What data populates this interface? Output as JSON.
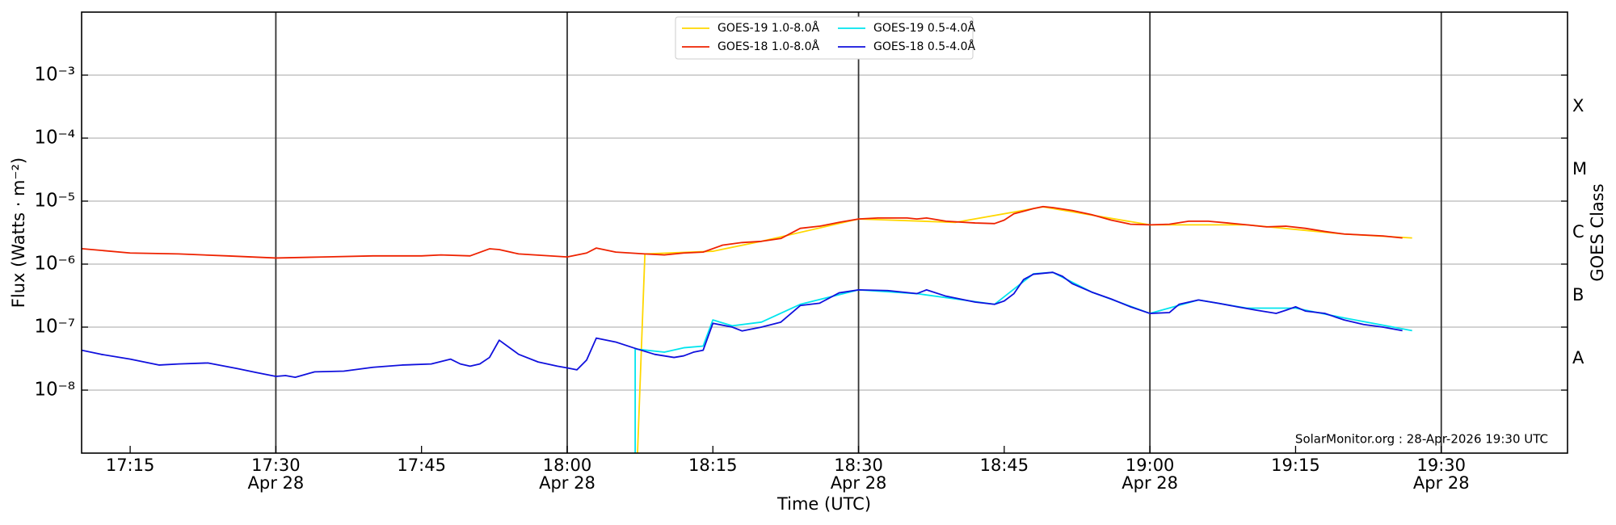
{
  "chart_data": {
    "type": "line",
    "ylabel": "Flux (Watts · m⁻²)",
    "xlabel": "Time (UTC)",
    "y2label": "GOES Class",
    "annotation": "SolarMonitor.org : 28-Apr-2026 19:30 UTC",
    "log_scale": true,
    "grid": true,
    "legend": "top",
    "xlim": [
      "17:10",
      "19:43"
    ],
    "xticks": [
      "17:15",
      "17:30",
      "17:45",
      "18:00",
      "18:15",
      "18:30",
      "18:45",
      "19:00",
      "19:15",
      "19:30"
    ],
    "xtick_sublabels": [
      null,
      "Apr 28",
      null,
      "Apr 28",
      null,
      "Apr 28",
      null,
      "Apr 28",
      null,
      "Apr 28"
    ],
    "ylim": [
      1e-09,
      0.01
    ],
    "yticks": [
      {
        "value": 1e-08,
        "label": "10⁻⁸"
      },
      {
        "value": 1e-07,
        "label": "10⁻⁷"
      },
      {
        "value": 1e-06,
        "label": "10⁻⁶"
      },
      {
        "value": 1e-05,
        "label": "10⁻⁵"
      },
      {
        "value": 0.0001,
        "label": "10⁻⁴"
      },
      {
        "value": 0.001,
        "label": "10⁻³"
      }
    ],
    "class_labels": [
      "A",
      "B",
      "C",
      "M",
      "X"
    ],
    "class_thresholds": [
      1e-08,
      1e-07,
      1e-06,
      1e-05,
      0.0001
    ],
    "series": [
      {
        "name": "GOES-19 1.0-8.0Å",
        "color": "#ffd700",
        "x": [
          "18:07",
          "18:08",
          "18:15",
          "18:20",
          "18:30",
          "18:40",
          "18:49",
          "19:00",
          "19:10",
          "19:20",
          "19:27"
        ],
        "values": [
          1e-10,
          1.45e-06,
          1.6e-06,
          2.3e-06,
          5.2e-06,
          4.6e-06,
          8.1e-06,
          4.2e-06,
          4.2e-06,
          3e-06,
          2.6e-06
        ]
      },
      {
        "name": "GOES-18 1.0-8.0Å",
        "color": "#ee2200",
        "x": [
          "17:10",
          "17:15",
          "17:20",
          "17:25",
          "17:30",
          "17:35",
          "17:40",
          "17:45",
          "17:47",
          "17:50",
          "17:52",
          "17:53",
          "17:55",
          "18:00",
          "18:02",
          "18:03",
          "18:05",
          "18:08",
          "18:10",
          "18:12",
          "18:14",
          "18:16",
          "18:18",
          "18:20",
          "18:22",
          "18:24",
          "18:26",
          "18:28",
          "18:30",
          "18:32",
          "18:35",
          "18:36",
          "18:37",
          "18:39",
          "18:42",
          "18:44",
          "18:45",
          "18:46",
          "18:48",
          "18:49",
          "18:50",
          "18:52",
          "18:54",
          "18:56",
          "18:58",
          "19:00",
          "19:02",
          "19:04",
          "19:06",
          "19:08",
          "19:10",
          "19:12",
          "19:14",
          "19:16",
          "19:18",
          "19:20",
          "19:24",
          "19:26"
        ],
        "values": [
          1.76e-06,
          1.5e-06,
          1.45e-06,
          1.35e-06,
          1.25e-06,
          1.3e-06,
          1.35e-06,
          1.35e-06,
          1.4e-06,
          1.35e-06,
          1.75e-06,
          1.7e-06,
          1.45e-06,
          1.3e-06,
          1.5e-06,
          1.8e-06,
          1.55e-06,
          1.45e-06,
          1.4e-06,
          1.5e-06,
          1.55e-06,
          2e-06,
          2.2e-06,
          2.3e-06,
          2.55e-06,
          3.7e-06,
          4e-06,
          4.6e-06,
          5.2e-06,
          5.4e-06,
          5.4e-06,
          5.2e-06,
          5.4e-06,
          4.8e-06,
          4.5e-06,
          4.4e-06,
          5e-06,
          6.3e-06,
          7.6e-06,
          8.2e-06,
          7.9e-06,
          7.1e-06,
          6.1e-06,
          5e-06,
          4.3e-06,
          4.2e-06,
          4.3e-06,
          4.8e-06,
          4.8e-06,
          4.5e-06,
          4.2e-06,
          3.9e-06,
          4e-06,
          3.7e-06,
          3.3e-06,
          3e-06,
          2.8e-06,
          2.6e-06
        ]
      },
      {
        "name": "GOES-19 0.5-4.0Å",
        "color": "#00e5ee",
        "x": [
          "18:07",
          "18:07",
          "18:10",
          "18:12",
          "18:14",
          "18:15",
          "18:17",
          "18:20",
          "18:24",
          "18:30",
          "18:36",
          "18:40",
          "18:44",
          "18:48",
          "18:50",
          "18:54",
          "19:00",
          "19:05",
          "19:10",
          "19:15",
          "19:20",
          "19:27"
        ],
        "values": [
          1e-10,
          4.5e-08,
          4e-08,
          4.7e-08,
          5e-08,
          1.3e-07,
          1.05e-07,
          1.2e-07,
          2.3e-07,
          3.9e-07,
          3.4e-07,
          2.8e-07,
          2.3e-07,
          7e-07,
          7.4e-07,
          3.6e-07,
          1.65e-07,
          2.7e-07,
          2e-07,
          2e-07,
          1.4e-07,
          8.8e-08
        ]
      },
      {
        "name": "GOES-18 0.5-4.0Å",
        "color": "#1010dd",
        "x": [
          "17:10",
          "17:12",
          "17:15",
          "17:18",
          "17:20",
          "17:23",
          "17:26",
          "17:28",
          "17:30",
          "17:31",
          "17:32",
          "17:34",
          "17:37",
          "17:40",
          "17:43",
          "17:46",
          "17:48",
          "17:49",
          "17:50",
          "17:51",
          "17:52",
          "17:53",
          "17:55",
          "17:57",
          "17:59",
          "18:00",
          "18:01",
          "18:02",
          "18:03",
          "18:05",
          "18:07",
          "18:09",
          "18:11",
          "18:12",
          "18:13",
          "18:14",
          "18:15",
          "18:17",
          "18:18",
          "18:20",
          "18:22",
          "18:24",
          "18:26",
          "18:28",
          "18:30",
          "18:33",
          "18:36",
          "18:37",
          "18:39",
          "18:42",
          "18:44",
          "18:45",
          "18:46",
          "18:47",
          "18:48",
          "18:50",
          "18:51",
          "18:52",
          "18:54",
          "18:56",
          "18:58",
          "19:00",
          "19:02",
          "19:03",
          "19:05",
          "19:07",
          "19:09",
          "19:11",
          "19:13",
          "19:14",
          "19:15",
          "19:16",
          "19:18",
          "19:20",
          "19:22",
          "19:24",
          "19:26"
        ],
        "values": [
          4.3e-08,
          3.7e-08,
          3.1e-08,
          2.5e-08,
          2.6e-08,
          2.7e-08,
          2.2e-08,
          1.9e-08,
          1.65e-08,
          1.7e-08,
          1.6e-08,
          1.95e-08,
          2e-08,
          2.3e-08,
          2.5e-08,
          2.6e-08,
          3.1e-08,
          2.6e-08,
          2.4e-08,
          2.6e-08,
          3.3e-08,
          6.2e-08,
          3.7e-08,
          2.8e-08,
          2.4e-08,
          2.25e-08,
          2.1e-08,
          3e-08,
          6.7e-08,
          5.8e-08,
          4.6e-08,
          3.7e-08,
          3.3e-08,
          3.5e-08,
          4e-08,
          4.3e-08,
          1.15e-07,
          1e-07,
          8.7e-08,
          1e-07,
          1.2e-07,
          2.2e-07,
          2.4e-07,
          3.5e-07,
          3.9e-07,
          3.8e-07,
          3.4e-07,
          3.9e-07,
          3.1e-07,
          2.5e-07,
          2.3e-07,
          2.6e-07,
          3.4e-07,
          5.7e-07,
          6.9e-07,
          7.4e-07,
          6.4e-07,
          4.9e-07,
          3.6e-07,
          2.8e-07,
          2.1e-07,
          1.65e-07,
          1.7e-07,
          2.3e-07,
          2.7e-07,
          2.4e-07,
          2.1e-07,
          1.85e-07,
          1.65e-07,
          1.85e-07,
          2.1e-07,
          1.8e-07,
          1.65e-07,
          1.3e-07,
          1.1e-07,
          1e-07,
          8.8e-08
        ]
      }
    ]
  }
}
